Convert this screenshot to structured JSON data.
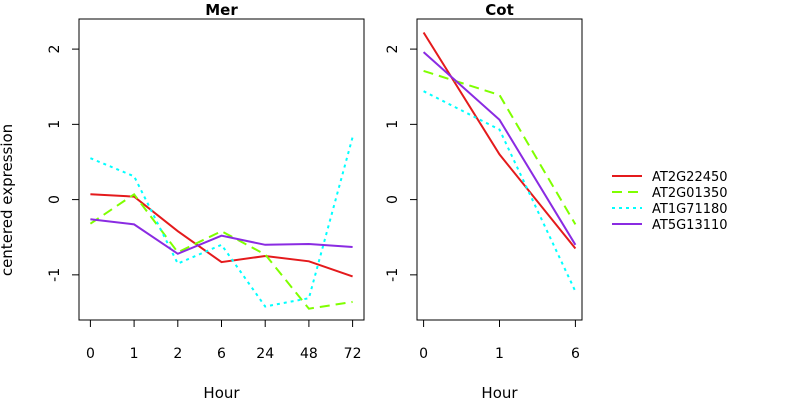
{
  "chart_data": {
    "type": "line",
    "ylabel": "centered expression",
    "ylim": [
      -1.6,
      2.4
    ],
    "yticks": [
      -1,
      0,
      1,
      2
    ],
    "grid": false,
    "legend_position": "right",
    "legend": [
      {
        "name": "AT2G22450",
        "color": "#e41a1c",
        "dash": "solid"
      },
      {
        "name": "AT2G01350",
        "color": "#7fff00",
        "dash": "dashed"
      },
      {
        "name": "AT1G71180",
        "color": "#00ffff",
        "dash": "dotted"
      },
      {
        "name": "AT5G13110",
        "color": "#8a2be2",
        "dash": "solid"
      }
    ],
    "panels": [
      {
        "title": "Mer",
        "xlabel": "Hour",
        "categories": [
          "0",
          "1",
          "2",
          "6",
          "24",
          "48",
          "72"
        ],
        "series": [
          {
            "name": "AT2G22450",
            "values": [
              0.07,
              0.04,
              -0.42,
              -0.83,
              -0.75,
              -0.82,
              -1.02
            ]
          },
          {
            "name": "AT2G01350",
            "values": [
              -0.32,
              0.07,
              -0.7,
              -0.42,
              -0.73,
              -1.45,
              -1.36
            ]
          },
          {
            "name": "AT1G71180",
            "values": [
              0.55,
              0.31,
              -0.85,
              -0.6,
              -1.42,
              -1.31,
              0.83
            ]
          },
          {
            "name": "AT5G13110",
            "values": [
              -0.26,
              -0.33,
              -0.72,
              -0.48,
              -0.6,
              -0.59,
              -0.63
            ]
          }
        ]
      },
      {
        "title": "Cot",
        "xlabel": "Hour",
        "categories": [
          "0",
          "1",
          "6"
        ],
        "series": [
          {
            "name": "AT2G22450",
            "values": [
              2.22,
              0.6,
              -0.65
            ]
          },
          {
            "name": "AT2G01350",
            "values": [
              1.71,
              1.39,
              -0.33
            ]
          },
          {
            "name": "AT1G71180",
            "values": [
              1.44,
              0.93,
              -1.22
            ]
          },
          {
            "name": "AT5G13110",
            "values": [
              1.96,
              1.06,
              -0.6
            ]
          }
        ]
      }
    ]
  }
}
